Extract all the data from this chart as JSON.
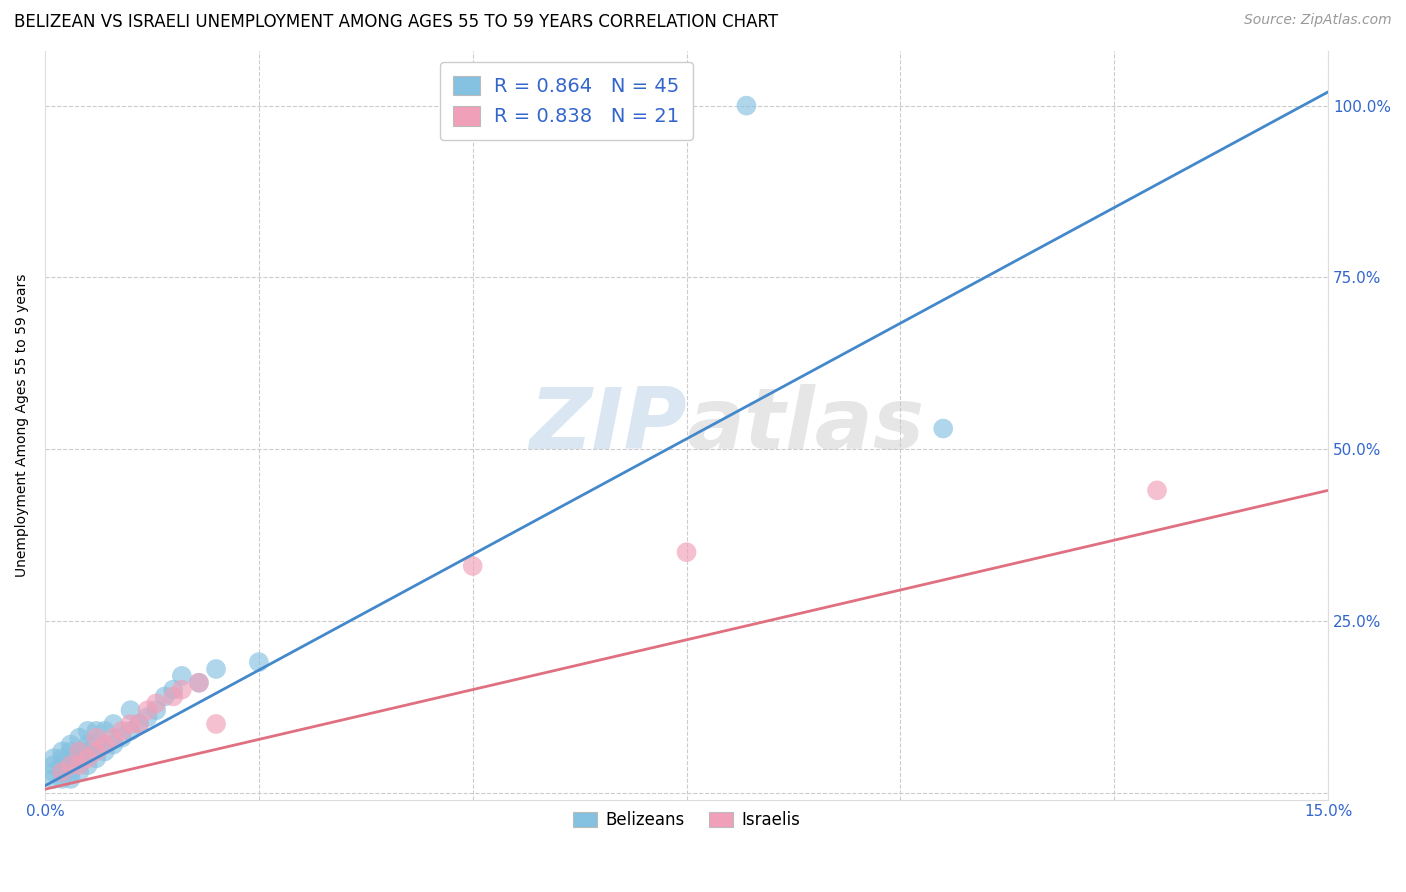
{
  "title": "BELIZEAN VS ISRAELI UNEMPLOYMENT AMONG AGES 55 TO 59 YEARS CORRELATION CHART",
  "source": "Source: ZipAtlas.com",
  "ylabel": "Unemployment Among Ages 55 to 59 years",
  "xlim": [
    0.0,
    0.15
  ],
  "ylim": [
    -0.01,
    1.08
  ],
  "xticks": [
    0.0,
    0.025,
    0.05,
    0.075,
    0.1,
    0.125,
    0.15
  ],
  "xtick_labels": [
    "0.0%",
    "",
    "",
    "",
    "",
    "",
    "15.0%"
  ],
  "ytick_positions": [
    0.0,
    0.25,
    0.5,
    0.75,
    1.0
  ],
  "ytick_labels": [
    "",
    "25.0%",
    "50.0%",
    "75.0%",
    "100.0%"
  ],
  "blue_color": "#85c1e0",
  "pink_color": "#f0a0b8",
  "blue_line_color": "#4488cc",
  "pink_line_color": "#e07080",
  "legend_R_blue": "0.864",
  "legend_N_blue": "45",
  "legend_R_pink": "0.838",
  "legend_N_pink": "21",
  "blue_scatter_x": [
    0.001,
    0.001,
    0.001,
    0.001,
    0.002,
    0.002,
    0.002,
    0.002,
    0.002,
    0.003,
    0.003,
    0.003,
    0.003,
    0.003,
    0.003,
    0.004,
    0.004,
    0.004,
    0.004,
    0.005,
    0.005,
    0.005,
    0.005,
    0.006,
    0.006,
    0.006,
    0.007,
    0.007,
    0.008,
    0.008,
    0.009,
    0.01,
    0.01,
    0.011,
    0.012,
    0.013,
    0.014,
    0.015,
    0.016,
    0.018,
    0.02,
    0.025,
    0.072,
    0.082,
    0.105
  ],
  "blue_scatter_y": [
    0.02,
    0.03,
    0.04,
    0.05,
    0.02,
    0.03,
    0.04,
    0.05,
    0.06,
    0.02,
    0.03,
    0.04,
    0.05,
    0.06,
    0.07,
    0.03,
    0.05,
    0.06,
    0.08,
    0.04,
    0.06,
    0.07,
    0.09,
    0.05,
    0.07,
    0.09,
    0.06,
    0.09,
    0.07,
    0.1,
    0.08,
    0.09,
    0.12,
    0.1,
    0.11,
    0.12,
    0.14,
    0.15,
    0.17,
    0.16,
    0.18,
    0.19,
    1.0,
    1.0,
    0.53
  ],
  "pink_scatter_x": [
    0.002,
    0.003,
    0.004,
    0.004,
    0.005,
    0.006,
    0.006,
    0.007,
    0.008,
    0.009,
    0.01,
    0.011,
    0.012,
    0.013,
    0.015,
    0.016,
    0.018,
    0.02,
    0.05,
    0.075,
    0.13
  ],
  "pink_scatter_y": [
    0.03,
    0.04,
    0.04,
    0.06,
    0.05,
    0.06,
    0.08,
    0.07,
    0.08,
    0.09,
    0.1,
    0.1,
    0.12,
    0.13,
    0.14,
    0.15,
    0.16,
    0.1,
    0.33,
    0.35,
    0.44
  ],
  "blue_trend_x": [
    0.0,
    0.15
  ],
  "blue_trend_y": [
    0.01,
    1.02
  ],
  "pink_trend_x": [
    0.0,
    0.15
  ],
  "pink_trend_y": [
    0.005,
    0.44
  ],
  "watermark_zip": "ZIP",
  "watermark_atlas": "atlas",
  "bg_color": "#ffffff",
  "grid_color": "#cccccc",
  "title_fontsize": 12,
  "axis_label_fontsize": 10,
  "tick_fontsize": 11,
  "legend_fontsize": 14,
  "source_fontsize": 10
}
